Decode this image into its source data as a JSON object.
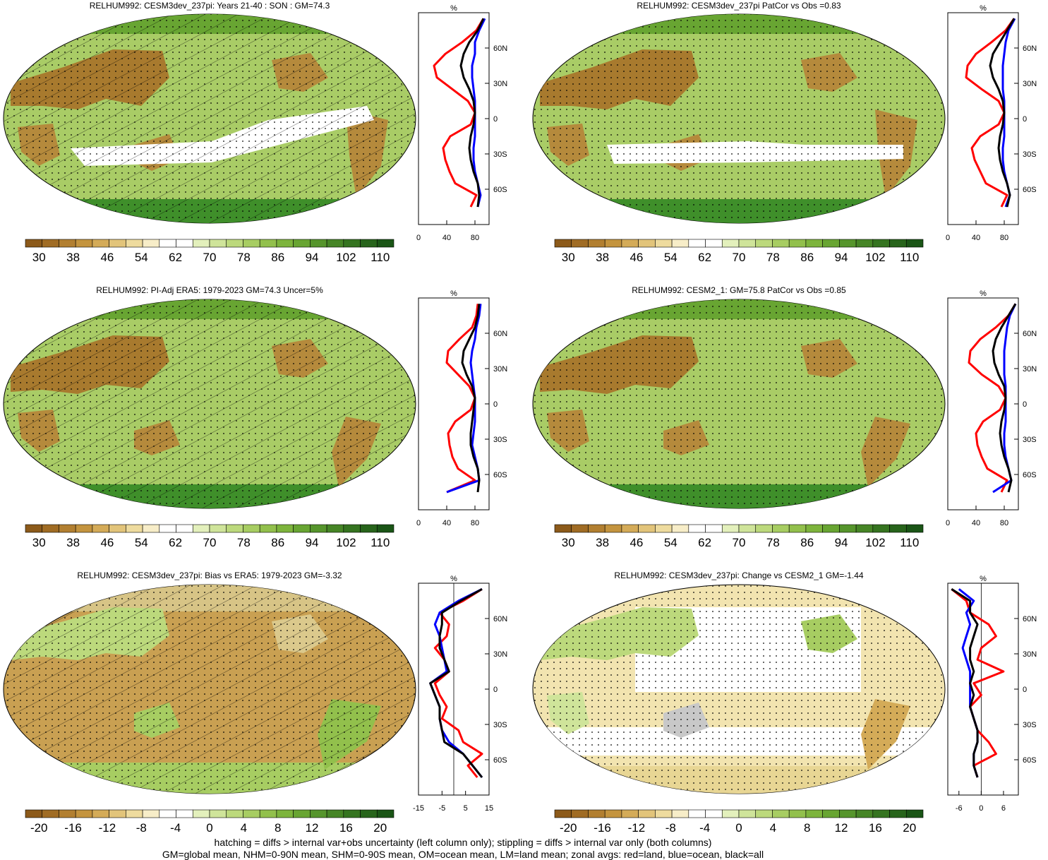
{
  "figure": {
    "footnote_lines": [
      "hatching = diffs > internal var+obs uncertainty (left column only); stippling = diffs > internal var only (both columns)",
      "GM=global mean, NHM=0-90N mean, SHM=0-90S mean, OM=ocean mean, LM=land mean; zonal avgs: red=land, blue=ocean, black=all"
    ],
    "colorbars": {
      "absolute": {
        "labels": [
          "30",
          "38",
          "46",
          "54",
          "62",
          "70",
          "78",
          "86",
          "94",
          "102",
          "110"
        ],
        "colors": [
          "#8c5a1a",
          "#a06c24",
          "#b27f30",
          "#c4943e",
          "#d4ab58",
          "#e2c47a",
          "#eedb9e",
          "#f7edc8",
          "#ffffff",
          "#ffffff",
          "#e3f0bc",
          "#cfe49a",
          "#bcd97c",
          "#a7cd62",
          "#92c04c",
          "#7db43c",
          "#68a532",
          "#56952c",
          "#468526",
          "#357420",
          "#27641b",
          "#1a5516"
        ]
      },
      "difference": {
        "labels": [
          "-20",
          "-16",
          "-12",
          "-8",
          "-4",
          "0",
          "4",
          "8",
          "12",
          "16",
          "20"
        ],
        "colors": [
          "#8c5a1a",
          "#a06c24",
          "#b27f30",
          "#c4943e",
          "#d4ab58",
          "#e2c47a",
          "#eedb9e",
          "#f7edc8",
          "#ffffff",
          "#ffffff",
          "#e3f0bc",
          "#cfe49a",
          "#bcd97c",
          "#a7cd62",
          "#92c04c",
          "#7db43c",
          "#68a532",
          "#56952c",
          "#468526",
          "#357420",
          "#27641b",
          "#1a5516"
        ]
      }
    },
    "zonal_colors": {
      "land": "#ff0000",
      "ocean": "#0000ff",
      "all": "#000000"
    },
    "lat_ticks": [
      "60N",
      "30N",
      "0",
      "30S",
      "60S"
    ]
  },
  "chart_data": [
    {
      "type": "heatmap",
      "title": "RELHUM992: CESM3dev_237pi: Years 21-40 : SON : GM=74.3",
      "colorbar": "absolute",
      "overlay": "hatching+stippling",
      "zonal_panel": {
        "unit": "%",
        "xlim": [
          0,
          100
        ],
        "x_ticks": [
          "0",
          "40",
          "80"
        ],
        "y": [
          85,
          75,
          65,
          55,
          45,
          35,
          25,
          15,
          5,
          -5,
          -15,
          -25,
          -35,
          -45,
          -55,
          -65,
          -75
        ],
        "land": [
          92,
          82,
          62,
          38,
          22,
          26,
          48,
          70,
          80,
          74,
          45,
          35,
          38,
          44,
          52,
          82,
          74
        ],
        "ocean": [
          94,
          86,
          80,
          80,
          76,
          76,
          78,
          80,
          80,
          80,
          80,
          78,
          78,
          80,
          84,
          88,
          84
        ],
        "all": [
          92,
          84,
          72,
          64,
          60,
          64,
          72,
          78,
          80,
          78,
          74,
          72,
          74,
          78,
          84,
          86,
          84
        ]
      }
    },
    {
      "type": "heatmap",
      "title": "RELHUM992: CESM3dev_237pi PatCor vs Obs =0.83",
      "colorbar": "absolute",
      "overlay": "stippling",
      "zonal_panel": {
        "unit": "%",
        "xlim": [
          0,
          100
        ],
        "x_ticks": [
          "0",
          "40",
          "80"
        ],
        "y": [
          85,
          75,
          65,
          55,
          45,
          35,
          25,
          15,
          5,
          -5,
          -15,
          -25,
          -35,
          -45,
          -55,
          -65,
          -75
        ],
        "land": [
          94,
          82,
          62,
          40,
          28,
          26,
          48,
          72,
          80,
          72,
          46,
          34,
          38,
          46,
          54,
          84,
          76
        ],
        "ocean": [
          95,
          86,
          82,
          80,
          78,
          78,
          78,
          80,
          80,
          80,
          80,
          78,
          78,
          80,
          84,
          88,
          82
        ],
        "all": [
          94,
          84,
          74,
          64,
          60,
          64,
          72,
          78,
          80,
          78,
          74,
          72,
          74,
          78,
          84,
          88,
          84
        ]
      }
    },
    {
      "type": "heatmap",
      "title": "RELHUM992: PI-Adj ERA5: 1979-2023 GM=74.3 Uncer=5%",
      "colorbar": "absolute",
      "overlay": "hatching+stippling",
      "zonal_panel": {
        "unit": "%",
        "xlim": [
          0,
          100
        ],
        "x_ticks": [
          "0",
          "40",
          "80"
        ],
        "y": [
          85,
          75,
          65,
          55,
          45,
          35,
          25,
          15,
          5,
          -5,
          -15,
          -25,
          -35,
          -45,
          -55,
          -65,
          -75
        ],
        "land": [
          84,
          82,
          76,
          58,
          42,
          40,
          56,
          72,
          80,
          74,
          52,
          42,
          44,
          48,
          56,
          80,
          40
        ],
        "ocean": [
          88,
          86,
          82,
          80,
          76,
          74,
          76,
          78,
          80,
          80,
          80,
          78,
          76,
          80,
          84,
          86,
          40
        ],
        "all": [
          86,
          84,
          80,
          72,
          64,
          62,
          68,
          76,
          80,
          78,
          76,
          74,
          74,
          78,
          84,
          86,
          84
        ]
      }
    },
    {
      "type": "heatmap",
      "title": "RELHUM992: CESM2_1: GM=75.8 PatCor vs Obs =0.85",
      "colorbar": "absolute",
      "overlay": "stippling",
      "zonal_panel": {
        "unit": "%",
        "xlim": [
          0,
          100
        ],
        "x_ticks": [
          "0",
          "40",
          "80"
        ],
        "y": [
          85,
          75,
          65,
          55,
          45,
          35,
          25,
          15,
          5,
          -5,
          -15,
          -25,
          -35,
          -45,
          -55,
          -65,
          -75
        ],
        "land": [
          96,
          86,
          68,
          46,
          32,
          30,
          48,
          72,
          82,
          74,
          50,
          40,
          42,
          48,
          56,
          84,
          76
        ],
        "ocean": [
          96,
          88,
          84,
          82,
          80,
          80,
          80,
          82,
          82,
          82,
          82,
          80,
          80,
          82,
          86,
          90,
          64
        ],
        "all": [
          96,
          86,
          76,
          68,
          64,
          66,
          72,
          80,
          82,
          80,
          76,
          74,
          76,
          80,
          86,
          90,
          86
        ]
      }
    },
    {
      "type": "heatmap",
      "title": "RELHUM992: CESM3dev_237pi: Bias vs ERA5: 1979-2023  GM=-3.32",
      "colorbar": "difference",
      "overlay": "hatching+stippling",
      "zonal_panel": {
        "unit": "%",
        "xlim": [
          -15,
          15
        ],
        "x_ticks": [
          "-15",
          "-5",
          "5",
          "15"
        ],
        "y": [
          85,
          75,
          65,
          55,
          45,
          35,
          25,
          15,
          5,
          -5,
          -15,
          -25,
          -35,
          -45,
          -55,
          -65,
          -75
        ],
        "land": [
          12,
          4,
          -6,
          -2,
          -3,
          -8,
          -4,
          -2,
          -8,
          -6,
          -3,
          -5,
          2,
          4,
          12,
          6,
          10
        ],
        "ocean": [
          12,
          2,
          -6,
          -8,
          -6,
          -5,
          -4,
          -3,
          -10,
          -8,
          -6,
          -6,
          -5,
          -2,
          4,
          8,
          12
        ],
        "all": [
          12,
          3,
          -5,
          -5,
          -6,
          -6,
          -4,
          -2,
          -10,
          -8,
          -6,
          -6,
          -5,
          -4,
          4,
          8,
          12
        ]
      }
    },
    {
      "type": "heatmap",
      "title": "RELHUM992: CESM3dev_237pi: Change vs CESM2_1 GM=-1.44",
      "colorbar": "difference",
      "overlay": "stippling",
      "zonal_panel": {
        "unit": "%",
        "xlim": [
          -9,
          10
        ],
        "x_ticks": [
          "-6",
          "0",
          "6"
        ],
        "y": [
          85,
          75,
          65,
          55,
          45,
          35,
          25,
          15,
          5,
          -5,
          -15,
          -25,
          -35,
          -45,
          -55,
          -65,
          -75
        ],
        "land": [
          -8,
          -4,
          -3,
          2,
          4,
          0,
          -1,
          6,
          -2,
          0,
          -3,
          -2,
          -1,
          2,
          4,
          -2,
          -1
        ],
        "ocean": [
          -6,
          -2,
          -4,
          -3,
          -4,
          -5,
          -4,
          -3,
          -3,
          -3,
          -3,
          -2,
          -1,
          -1,
          -2,
          -2,
          -1
        ],
        "all": [
          -8,
          -3,
          -3,
          -1,
          -2,
          -3,
          -3,
          -2,
          -3,
          -2,
          -3,
          -2,
          -1,
          -1,
          -2,
          -2,
          -1
        ]
      }
    }
  ]
}
